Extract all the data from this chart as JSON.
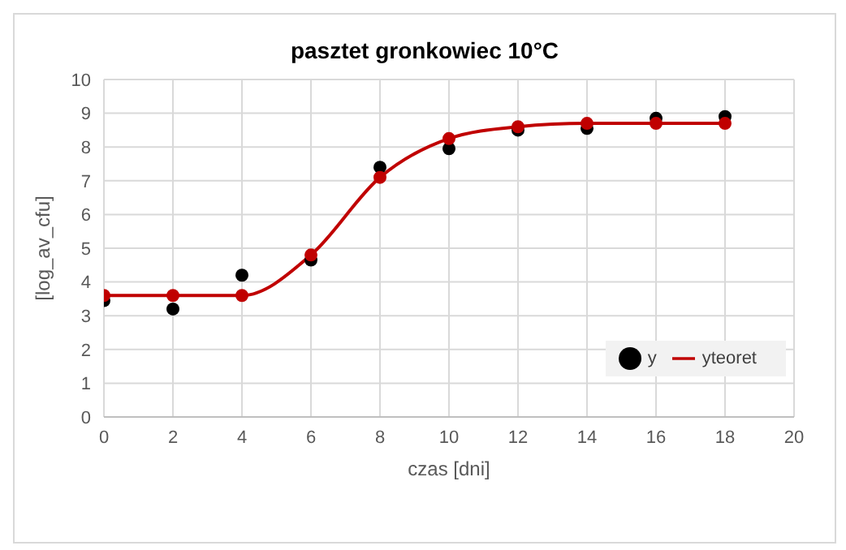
{
  "chart_data": {
    "type": "scatter",
    "title": "pasztet gronkowiec 10°C",
    "xlabel": "czas  [dni]",
    "ylabel": "[log_av_cfu]",
    "x": [
      0,
      2,
      4,
      6,
      8,
      10,
      12,
      14,
      16,
      18
    ],
    "series": [
      {
        "name": "y",
        "color": "#000000",
        "marker": "circle",
        "values": [
          3.45,
          3.2,
          4.2,
          4.65,
          7.4,
          7.95,
          8.5,
          8.55,
          8.85,
          8.9
        ]
      },
      {
        "name": "yteoret",
        "type": "line",
        "color": "#c00000",
        "marker": "circle",
        "line_style": "solid",
        "values": [
          3.6,
          3.6,
          3.6,
          4.8,
          7.1,
          8.25,
          8.6,
          8.7,
          8.7,
          8.7
        ]
      }
    ],
    "xlim": [
      0,
      20
    ],
    "xticks": [
      0,
      2,
      4,
      6,
      8,
      10,
      12,
      14,
      16,
      18,
      20
    ],
    "ylim": [
      0,
      10
    ],
    "yticks": [
      0,
      1,
      2,
      3,
      4,
      5,
      6,
      7,
      8,
      9,
      10
    ],
    "grid": true,
    "legend": "bottom right"
  }
}
